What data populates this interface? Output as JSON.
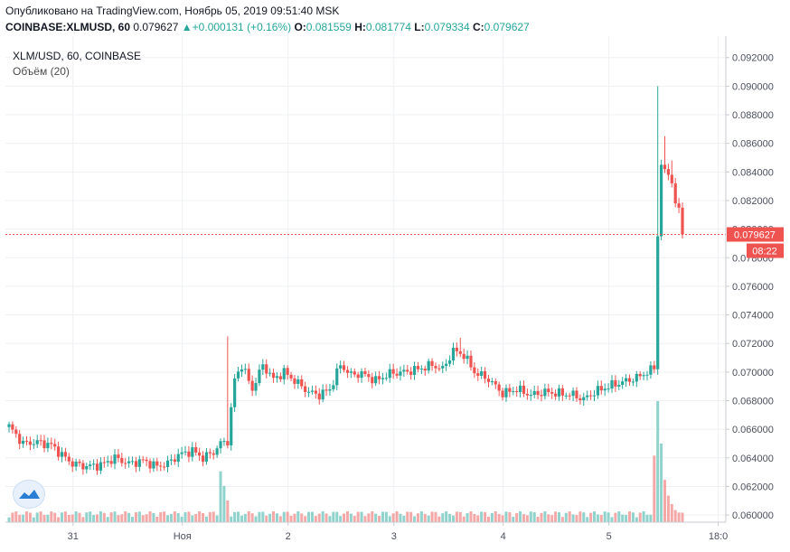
{
  "header": {
    "published": "Опубликовано на TradingView.com, Ноябрь 05, 2019 09:51:40 MSK",
    "symbol": "COINBASE:XLMUSD, 60",
    "last": "0.079627",
    "change_icon": "triangle-up-icon",
    "change": "+0.000131 (+0.16%)",
    "open_label": "O:",
    "open": "0.081559",
    "high_label": "H:",
    "high": "0.081774",
    "low_label": "L:",
    "low": "0.079334",
    "close_label": "C:",
    "close": "0.079627"
  },
  "legend": {
    "title": "XLM/USD, 60, COINBASE",
    "volume": "Объём (20)"
  },
  "price_label": "0.079627",
  "countdown": "08:22",
  "logo_icon": "tradingview-logo-icon",
  "colors": {
    "up": "#26a69a",
    "down": "#ef5350",
    "grid": "#eef0f3",
    "axis": "#9598a1"
  },
  "chart_data": {
    "type": "candlestick",
    "title": "XLM/USD, 60, COINBASE",
    "xlabel": "",
    "ylabel": "",
    "ylim": [
      0.0595,
      0.0935
    ],
    "y_ticks": [
      "0.092000",
      "0.090000",
      "0.088000",
      "0.086000",
      "0.084000",
      "0.082000",
      "0.080000",
      "0.078000",
      "0.076000",
      "0.074000",
      "0.072000",
      "0.070000",
      "0.068000",
      "0.066000",
      "0.064000",
      "0.062000",
      "0.060000"
    ],
    "x_ticks": [
      "31",
      "Ноя",
      "2",
      "3",
      "4",
      "5",
      "18:0"
    ],
    "last_price": 0.079627,
    "anchors": [
      [
        0,
        0.0662
      ],
      [
        4,
        0.065
      ],
      [
        8,
        0.0651
      ],
      [
        12,
        0.0649
      ],
      [
        15,
        0.0642
      ],
      [
        18,
        0.0636
      ],
      [
        22,
        0.0634
      ],
      [
        26,
        0.0635
      ],
      [
        30,
        0.064
      ],
      [
        34,
        0.0636
      ],
      [
        38,
        0.0638
      ],
      [
        42,
        0.0634
      ],
      [
        45,
        0.0636
      ],
      [
        48,
        0.0642
      ],
      [
        52,
        0.0645
      ],
      [
        55,
        0.064
      ],
      [
        58,
        0.0644
      ],
      [
        60,
        0.065
      ],
      [
        62,
        0.0652
      ],
      [
        64,
        0.0695
      ],
      [
        66,
        0.0705
      ],
      [
        69,
        0.0688
      ],
      [
        72,
        0.0705
      ],
      [
        75,
        0.0695
      ],
      [
        78,
        0.07
      ],
      [
        82,
        0.0692
      ],
      [
        85,
        0.0686
      ],
      [
        88,
        0.0684
      ],
      [
        91,
        0.0688
      ],
      [
        94,
        0.0705
      ],
      [
        97,
        0.0698
      ],
      [
        100,
        0.0699
      ],
      [
        104,
        0.0694
      ],
      [
        108,
        0.0699
      ],
      [
        112,
        0.07
      ],
      [
        116,
        0.0702
      ],
      [
        120,
        0.0705
      ],
      [
        123,
        0.0702
      ],
      [
        126,
        0.0715
      ],
      [
        129,
        0.0712
      ],
      [
        132,
        0.07
      ],
      [
        136,
        0.0695
      ],
      [
        140,
        0.0685
      ],
      [
        144,
        0.0688
      ],
      [
        148,
        0.0684
      ],
      [
        152,
        0.0686
      ],
      [
        156,
        0.0685
      ],
      [
        160,
        0.0684
      ],
      [
        163,
        0.0681
      ],
      [
        166,
        0.0686
      ],
      [
        170,
        0.069
      ],
      [
        174,
        0.0693
      ],
      [
        178,
        0.0696
      ],
      [
        181,
        0.07
      ],
      [
        183,
        0.0702
      ],
      [
        184,
        0.0795
      ],
      [
        185,
        0.0845
      ],
      [
        186,
        0.0842
      ],
      [
        187,
        0.0838
      ],
      [
        188,
        0.0832
      ],
      [
        189,
        0.0818
      ],
      [
        190,
        0.0815
      ],
      [
        191,
        0.07963
      ]
    ],
    "volume": {
      "name": "Объём (20)",
      "spikes": [
        [
          60,
          0.42
        ],
        [
          61,
          0.3
        ],
        [
          62,
          0.18
        ],
        [
          183,
          0.55
        ],
        [
          184,
          1.0
        ],
        [
          185,
          0.65
        ],
        [
          186,
          0.35
        ],
        [
          187,
          0.22
        ],
        [
          188,
          0.15
        ],
        [
          189,
          0.1
        ],
        [
          190,
          0.08
        ]
      ]
    }
  }
}
